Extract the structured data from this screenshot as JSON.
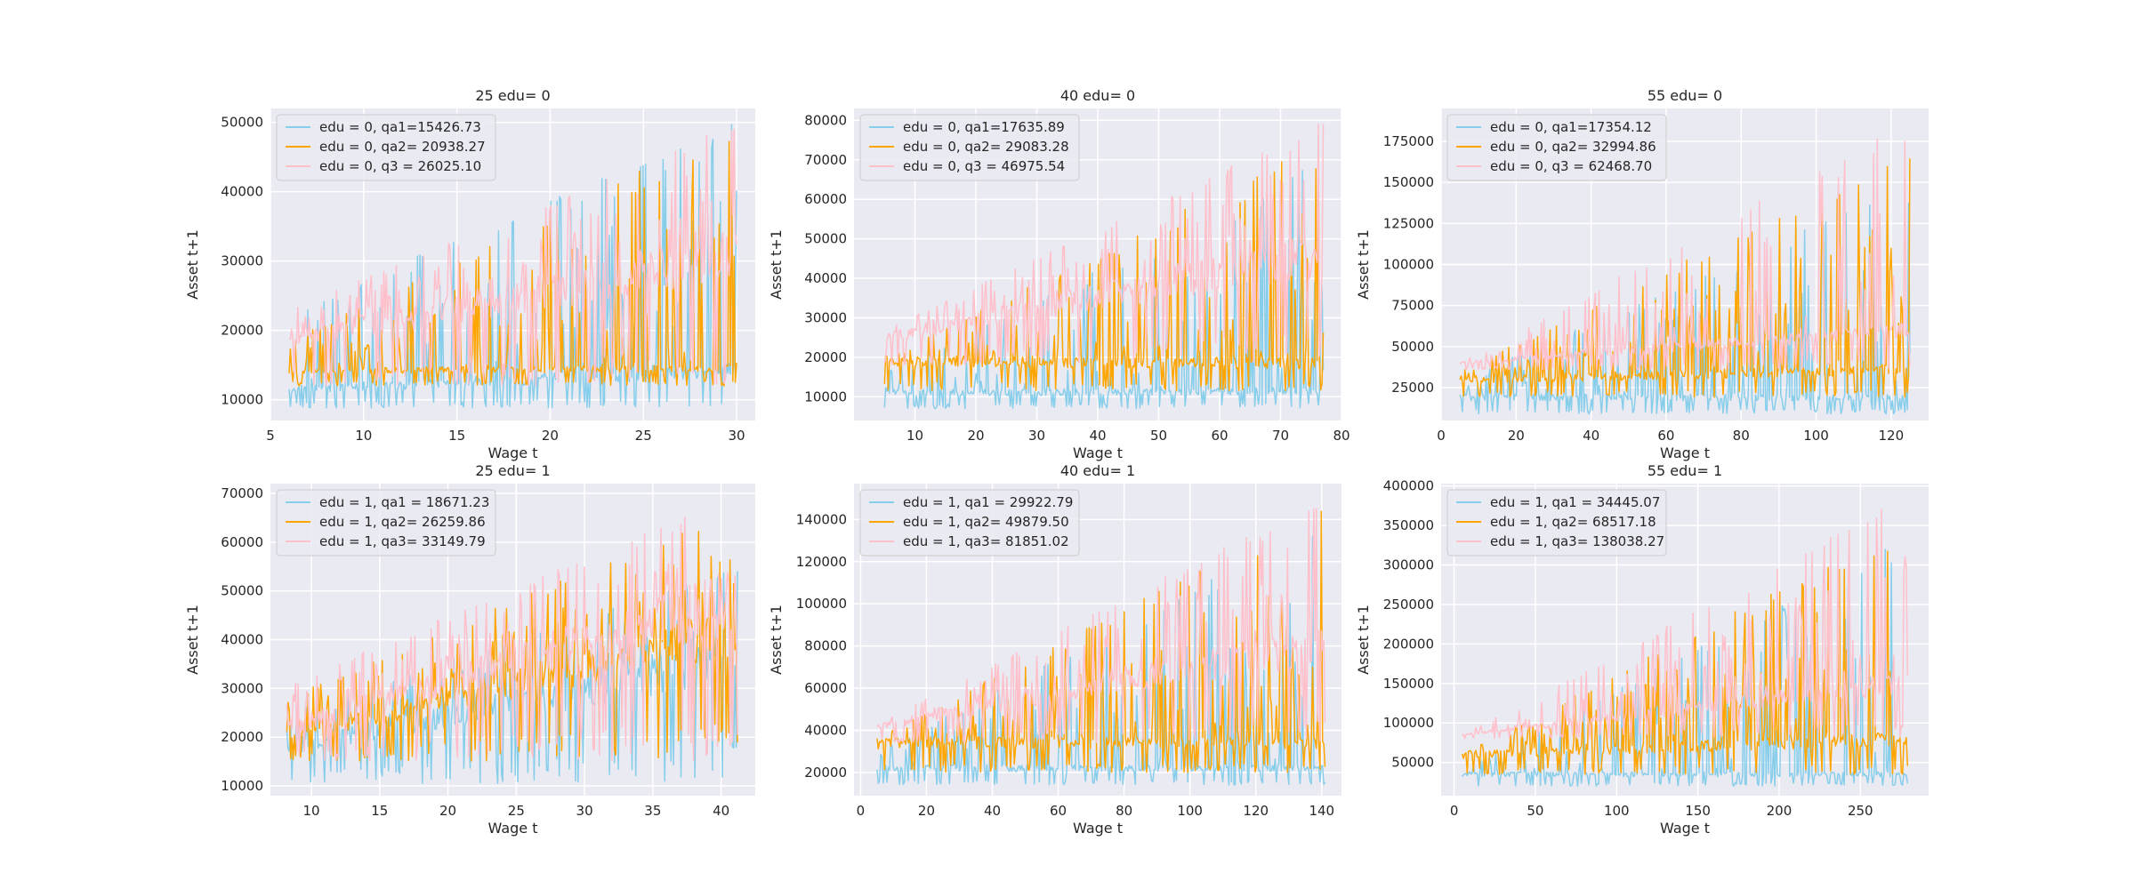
{
  "figure": {
    "background": "#ffffff",
    "axes_facecolor": "#eaeaf2",
    "grid_color": "#ffffff",
    "series_colors": [
      "#87ceeb",
      "#ffa500",
      "#ffc0cb"
    ]
  },
  "chart_data": [
    {
      "type": "line",
      "title": "25 edu= 0",
      "xlabel": "Wage t",
      "ylabel": "Asset t+1",
      "xlim": [
        5,
        31
      ],
      "ylim": [
        7000,
        52000
      ],
      "xticks": [
        5,
        10,
        15,
        20,
        25,
        30
      ],
      "yticks": [
        10000,
        20000,
        30000,
        40000,
        50000
      ],
      "x_range": [
        6,
        30
      ],
      "grid": true,
      "legend_position": "upper-left",
      "series": [
        {
          "name": "edu = 0, qa1=15426.73",
          "color": "#87ceeb",
          "floor": 8800,
          "base": [
            11500,
            14200
          ],
          "peak": [
            23000,
            50000
          ]
        },
        {
          "name": "edu = 0, qa2= 20938.27",
          "color": "#ffa500",
          "floor": 12000,
          "base": [
            14200,
            14500
          ],
          "peak": [
            18500,
            50000
          ]
        },
        {
          "name": "edu = 0, q3 = 26025.10",
          "color": "#ffc0cb",
          "floor": 12000,
          "base": [
            18500,
            31000
          ],
          "peak": [
            23000,
            50000
          ]
        }
      ]
    },
    {
      "type": "line",
      "title": "40 edu= 0",
      "xlabel": "Wage t",
      "ylabel": "Asset t+1",
      "xlim": [
        0,
        80
      ],
      "ylim": [
        4000,
        83000
      ],
      "xticks": [
        10,
        20,
        30,
        40,
        50,
        60,
        70,
        80
      ],
      "yticks": [
        10000,
        20000,
        30000,
        40000,
        50000,
        60000,
        70000,
        80000
      ],
      "x_range": [
        5,
        77
      ],
      "grid": true,
      "legend_position": "upper-left",
      "series": [
        {
          "name": "edu = 0, qa1=17635.89",
          "color": "#87ceeb",
          "floor": 7000,
          "base": [
            11000,
            11500
          ],
          "peak": [
            16000,
            70000
          ]
        },
        {
          "name": "edu = 0, qa2= 29083.28",
          "color": "#ffa500",
          "floor": 11500,
          "base": [
            19000,
            18500
          ],
          "peak": [
            20000,
            75000
          ]
        },
        {
          "name": "edu = 0, q3 = 46975.54",
          "color": "#ffc0cb",
          "floor": 18000,
          "base": [
            25000,
            46000
          ],
          "peak": [
            27000,
            80000
          ]
        }
      ]
    },
    {
      "type": "line",
      "title": "55 edu= 0",
      "xlabel": "Wage t",
      "ylabel": "Asset t+1",
      "xlim": [
        0,
        130
      ],
      "ylim": [
        5000,
        195000
      ],
      "xticks": [
        0,
        20,
        40,
        60,
        80,
        100,
        120
      ],
      "yticks": [
        25000,
        50000,
        75000,
        100000,
        125000,
        150000,
        175000
      ],
      "x_range": [
        5,
        125
      ],
      "grid": true,
      "legend_position": "upper-left",
      "series": [
        {
          "name": "edu = 0, qa1=17354.12",
          "color": "#87ceeb",
          "floor": 9000,
          "base": [
            19000,
            19000
          ],
          "peak": [
            30000,
            150000
          ]
        },
        {
          "name": "edu = 0, qa2= 32994.86",
          "color": "#ffa500",
          "floor": 19000,
          "base": [
            30000,
            36000
          ],
          "peak": [
            35000,
            170000
          ]
        },
        {
          "name": "edu = 0, q3 = 62468.70",
          "color": "#ffc0cb",
          "floor": 36000,
          "base": [
            40000,
            60000
          ],
          "peak": [
            40000,
            188000
          ]
        }
      ]
    },
    {
      "type": "line",
      "title": "25 edu= 1",
      "xlabel": "Wage t",
      "ylabel": "Asset t+1",
      "xlim": [
        7,
        42.5
      ],
      "ylim": [
        8000,
        72000
      ],
      "xticks": [
        10,
        15,
        20,
        25,
        30,
        35,
        40
      ],
      "yticks": [
        10000,
        20000,
        30000,
        40000,
        50000,
        60000,
        70000
      ],
      "x_range": [
        8.2,
        41.2
      ],
      "grid": true,
      "legend_position": "upper-left",
      "series": [
        {
          "name": "edu = 1, qa1 = 18671.23",
          "color": "#87ceeb",
          "floor": 10500,
          "base": [
            18000,
            36000
          ],
          "peak": [
            25000,
            55000
          ]
        },
        {
          "name": "edu = 1, qa2= 26259.86",
          "color": "#ffa500",
          "floor": 15000,
          "base": [
            20000,
            42000
          ],
          "peak": [
            28000,
            68000
          ]
        },
        {
          "name": "edu = 1, qa3= 33149.79",
          "color": "#ffc0cb",
          "floor": 15000,
          "base": [
            22000,
            48000
          ],
          "peak": [
            31000,
            70000
          ]
        }
      ]
    },
    {
      "type": "line",
      "title": "40 edu= 1",
      "xlabel": "Wage t",
      "ylabel": "Asset t+1",
      "xlim": [
        -2,
        146
      ],
      "ylim": [
        9000,
        157000
      ],
      "xticks": [
        0,
        20,
        40,
        60,
        80,
        100,
        120,
        140
      ],
      "yticks": [
        20000,
        40000,
        60000,
        80000,
        100000,
        120000,
        140000
      ],
      "x_range": [
        5,
        141
      ],
      "grid": true,
      "legend_position": "upper-left",
      "series": [
        {
          "name": "edu = 1, qa1 = 29922.79",
          "color": "#87ceeb",
          "floor": 14000,
          "base": [
            22000,
            22000
          ],
          "peak": [
            30000,
            140000
          ]
        },
        {
          "name": "edu = 1, qa2= 49879.50",
          "color": "#ffa500",
          "floor": 20000,
          "base": [
            34000,
            34000
          ],
          "peak": [
            36000,
            150000
          ]
        },
        {
          "name": "edu = 1, qa3= 81851.02",
          "color": "#ffc0cb",
          "floor": 34000,
          "base": [
            42000,
            80000
          ],
          "peak": [
            43000,
            152000
          ]
        }
      ]
    },
    {
      "type": "line",
      "title": "55 edu= 1",
      "xlabel": "Wage t",
      "ylabel": "Asset t+1",
      "xlim": [
        -8,
        292
      ],
      "ylim": [
        8000,
        403000
      ],
      "xticks": [
        0,
        50,
        100,
        150,
        200,
        250
      ],
      "yticks": [
        50000,
        100000,
        150000,
        200000,
        250000,
        300000,
        350000,
        400000
      ],
      "x_range": [
        5,
        279
      ],
      "grid": true,
      "legend_position": "upper-left",
      "series": [
        {
          "name": "edu = 1, qa1 = 34445.07",
          "color": "#87ceeb",
          "floor": 20000,
          "base": [
            35000,
            35000
          ],
          "peak": [
            40000,
            340000
          ]
        },
        {
          "name": "edu = 1, qa2= 68517.18",
          "color": "#ffa500",
          "floor": 35000,
          "base": [
            60000,
            80000
          ],
          "peak": [
            60000,
            360000
          ]
        },
        {
          "name": "edu = 1, qa3= 138038.27",
          "color": "#ffc0cb",
          "floor": 80000,
          "base": [
            85000,
            150000
          ],
          "peak": [
            85000,
            388000
          ]
        }
      ]
    }
  ]
}
